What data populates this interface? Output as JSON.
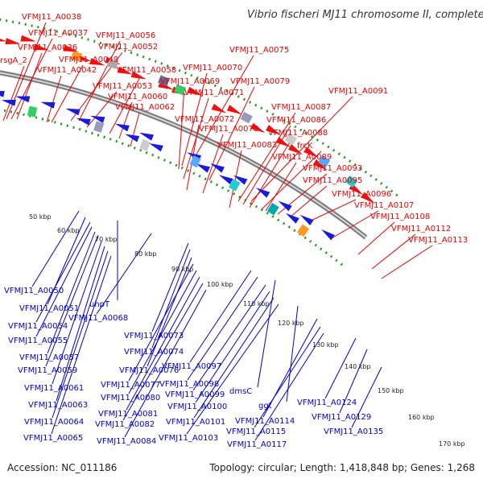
{
  "title": "Vibrio fischeri MJ11 chromosome II, complete sequence",
  "footer": {
    "accession": "Accession: NC_011186",
    "topology": "Topology: circular; Length: 1,418,848 bp; Genes: 1,268"
  },
  "colors": {
    "forward_label": "#ee0000",
    "reverse_label": "#0000cc",
    "backbone": "#888888",
    "track_dots": "#229922"
  },
  "ticks": [
    "50 kbp",
    "60 kbp",
    "70 kbp",
    "80 kbp",
    "90 kbp",
    "100 kbp",
    "110 kbp",
    "120 kbp",
    "130 kbp",
    "140 kbp",
    "150 kbp",
    "160 kbp",
    "170 kbp"
  ],
  "forward_genes": [
    "VFMJ11_A0038",
    "VFMJ11_A0037",
    "VFMJ11_A0036",
    "rsgA_2",
    "VFMJ11_A0056",
    "VFMJ11_A0052",
    "VFMJ11_A0049",
    "VFMJ11_A0042",
    "VFMJ11_A0058",
    "VFMJ11_A0053",
    "VFMJ11_A0060",
    "VFMJ11_A0062",
    "VFMJ11_A0075",
    "VFMJ11_A0070",
    "VFMJ11_A0069",
    "VFMJ11_A0079",
    "VFMJ11_A0071",
    "VFMJ11_A0072",
    "VFMJ11_A0078",
    "VFMJ11_A0083",
    "VFMJ11_A0091",
    "VFMJ11_A0087",
    "VFMJ11_A0086",
    "VFMJ11_A0088",
    "frcK",
    "VFMJ11_A0089",
    "VFMJ11_A0093",
    "VFMJ11_A0095",
    "VFMJ11_A0096",
    "VFMJ11_A0107",
    "VFMJ11_A0108",
    "VFMJ11_A0112",
    "VFMJ11_A0113"
  ],
  "reverse_genes": [
    "VFMJ11_A0050",
    "VFMJ11_A0051",
    "uhpT",
    "VFMJ11_A0054",
    "VFMJ11_A0068",
    "VFMJ11_A0055",
    "VFMJ11_A0073",
    "VFMJ11_A0057",
    "VFMJ11_A0074",
    "VFMJ11_A0059",
    "VFMJ11_A0076",
    "VFMJ11_A0097",
    "VFMJ11_A0061",
    "VFMJ11_A0077",
    "VFMJ11_A0098",
    "dmsC",
    "VFMJ11_A0080",
    "VFMJ11_A0099",
    "ggt",
    "VFMJ11_A0124",
    "VFMJ11_A0063",
    "VFMJ11_A0081",
    "VFMJ11_A0100",
    "VFMJ11_A0129",
    "VFMJ11_A0064",
    "VFMJ11_A0082",
    "VFMJ11_A0101",
    "VFMJ11_A0114",
    "VFMJ11_A0135",
    "VFMJ11_A0065",
    "VFMJ11_A0084",
    "VFMJ11_A0103",
    "VFMJ11_A0115",
    "VFMJ11_A0117"
  ]
}
